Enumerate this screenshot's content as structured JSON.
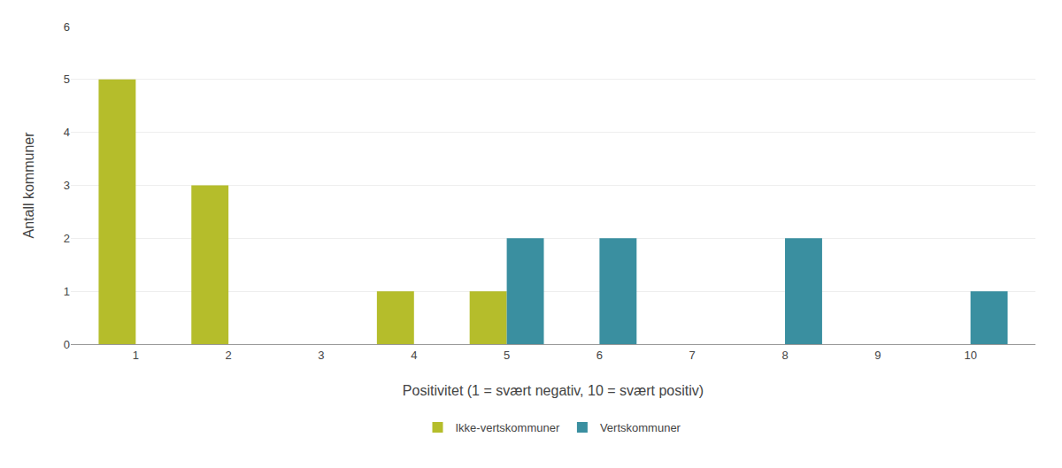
{
  "chart_data": {
    "type": "bar",
    "x": [
      1,
      2,
      3,
      4,
      5,
      6,
      7,
      8,
      9,
      10
    ],
    "series": [
      {
        "name": "Ikke-vertskommuner",
        "color": "#b5bd2b",
        "values": [
          5,
          3,
          0,
          1,
          1,
          0,
          0,
          0,
          0,
          0
        ]
      },
      {
        "name": "Vertskommuner",
        "color": "#3a8fa0",
        "values": [
          0,
          0,
          0,
          0,
          2,
          2,
          0,
          2,
          0,
          1
        ]
      }
    ],
    "xlabel": "Positivitet (1 = svært negativ, 10 = svært positiv)",
    "ylabel": "Antall kommuner",
    "xlim": [
      0.3,
      10.7
    ],
    "xticks": [
      1,
      2,
      3,
      4,
      5,
      6,
      7,
      8,
      9,
      10
    ],
    "ylim": [
      0,
      6
    ],
    "yticks": [
      0,
      1,
      2,
      3,
      4,
      5,
      6
    ],
    "grid": "y",
    "legend": "bottom"
  }
}
